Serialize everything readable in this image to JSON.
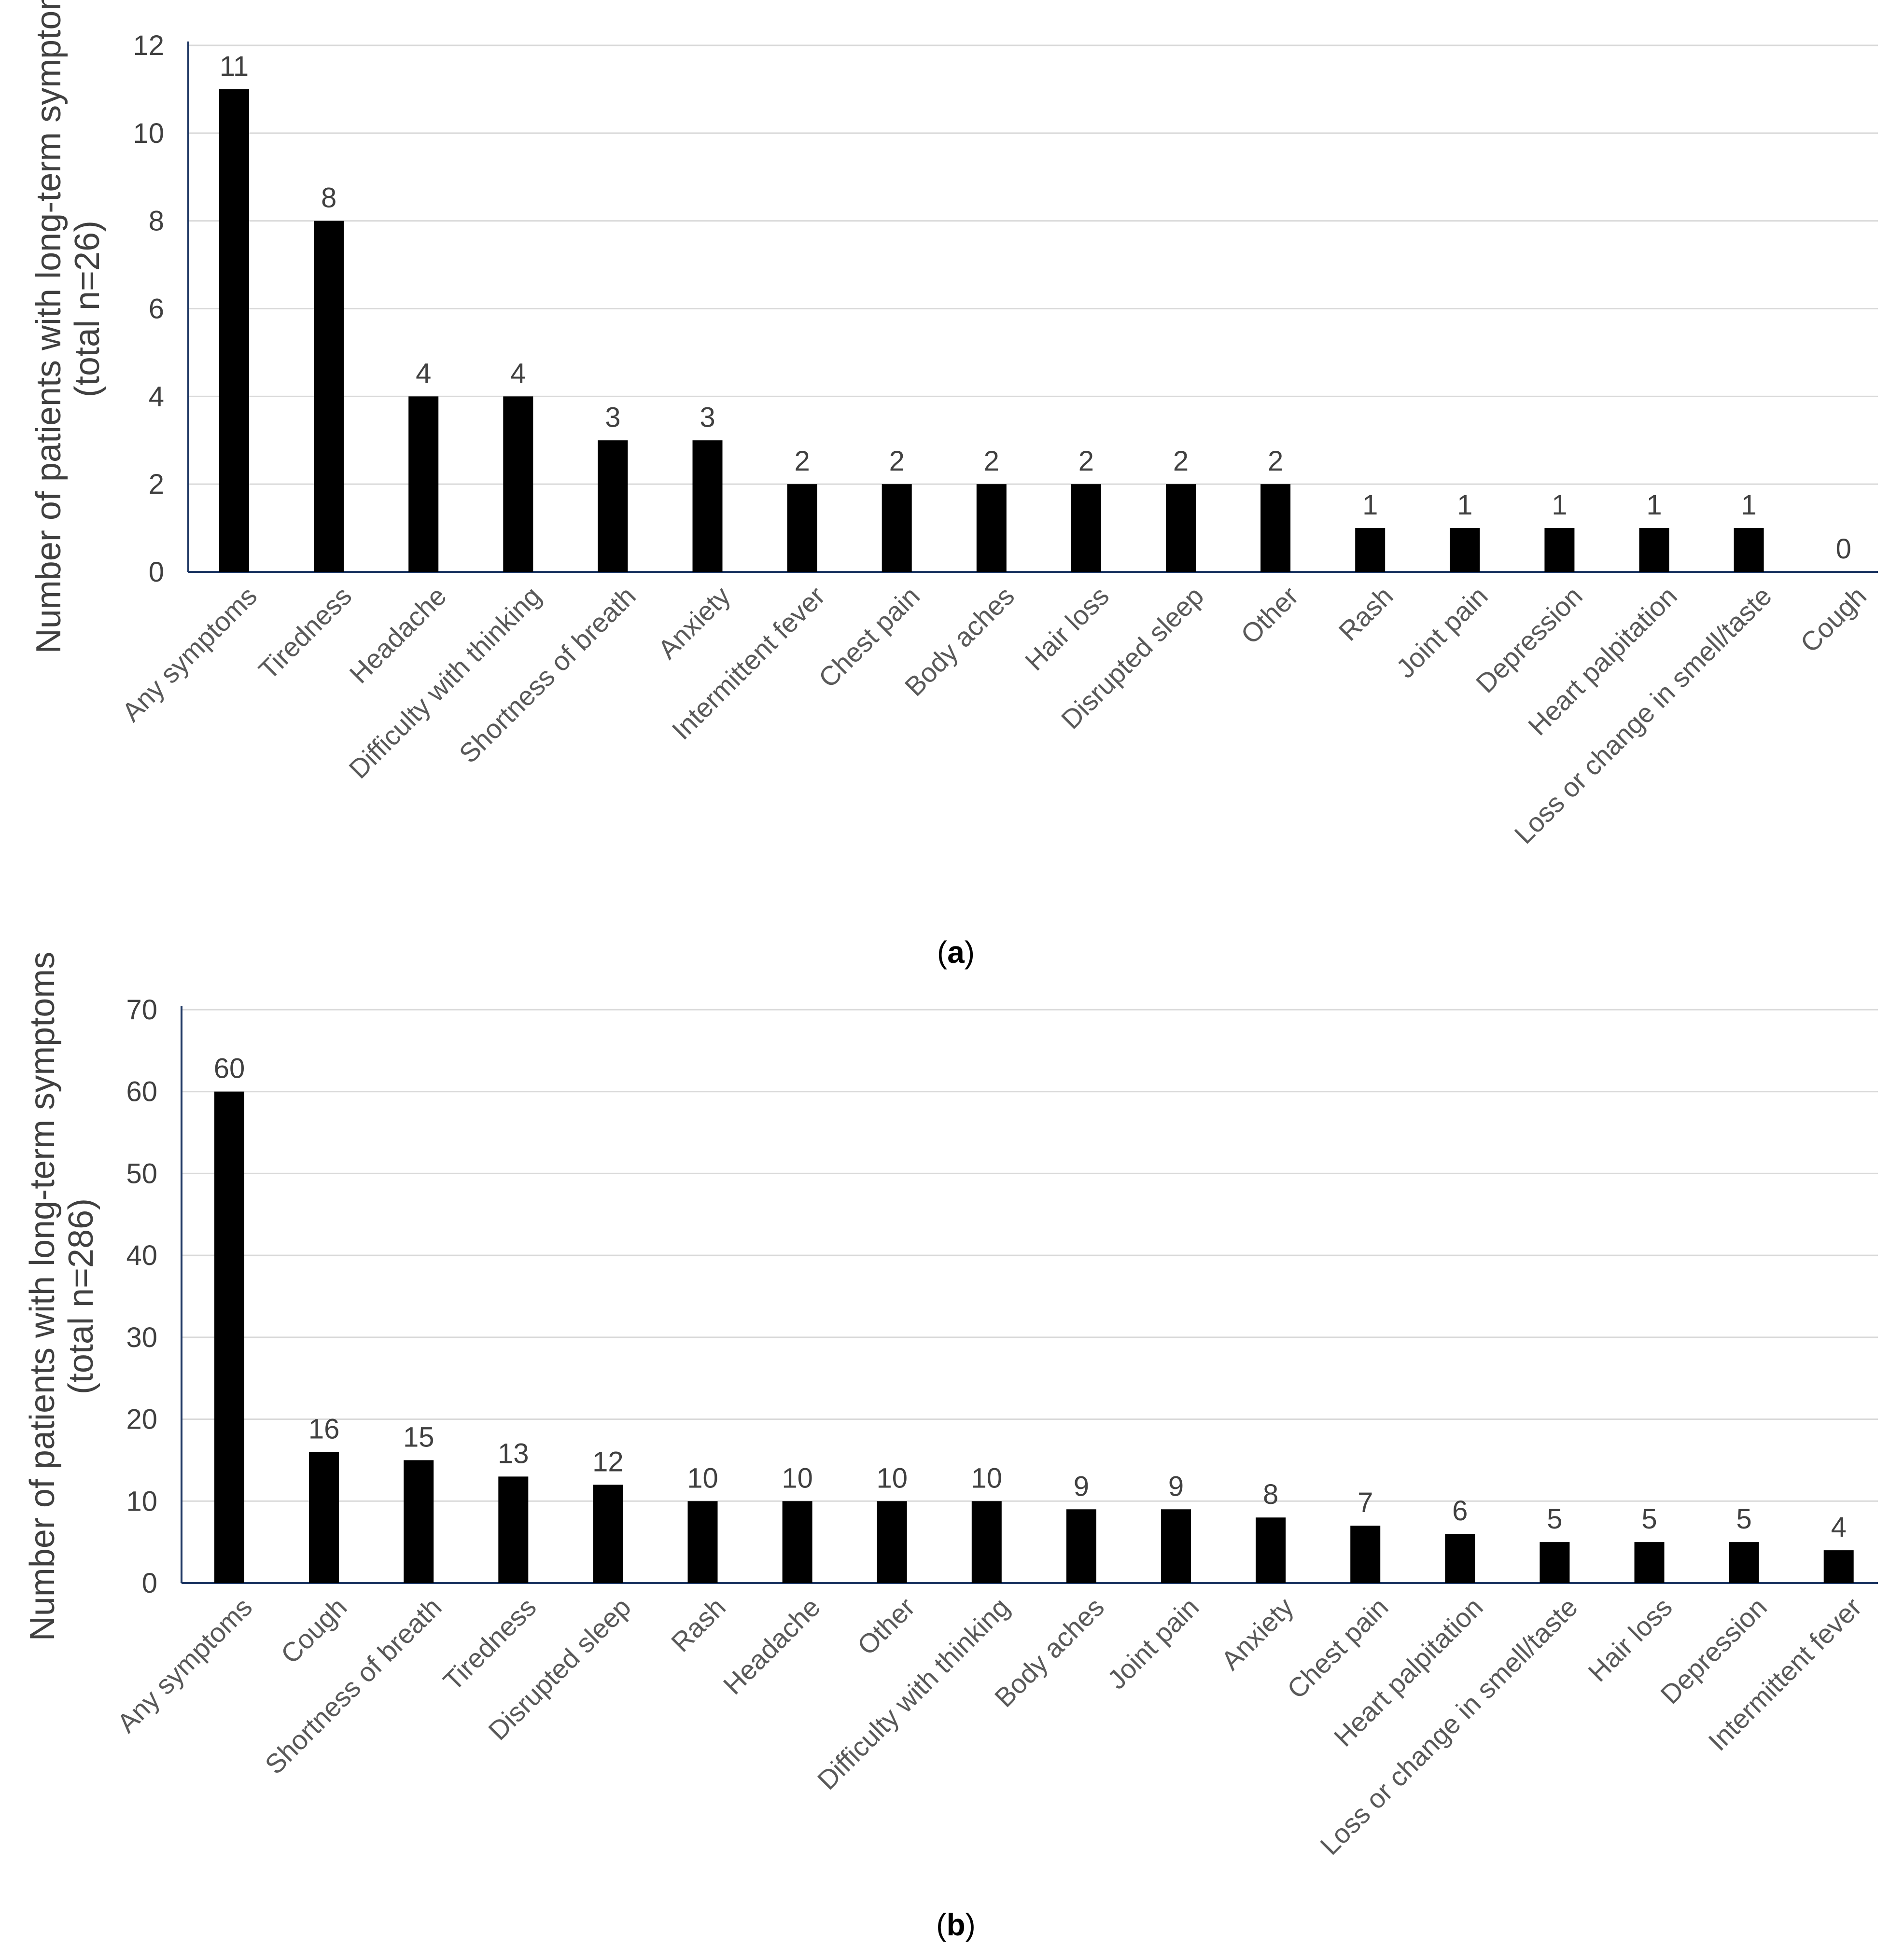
{
  "chart_data": [
    {
      "type": "bar",
      "panel_label": "a",
      "title": "",
      "xlabel": "",
      "ylabel_line1": "Number of patients with long-term symptoms",
      "ylabel_line2": "(total n=26)",
      "ylim": [
        0,
        12
      ],
      "yticks": [
        0,
        2,
        4,
        6,
        8,
        10,
        12
      ],
      "grid": true,
      "bar_color": "#000000",
      "categories": [
        "Any symptoms",
        "Tiredness",
        "Headache",
        "Difficulty with thinking",
        "Shortness of breath",
        "Anxiety",
        "Intermittent fever",
        "Chest pain",
        "Body aches",
        "Hair loss",
        "Disrupted sleep",
        "Other",
        "Rash",
        "Joint pain",
        "Depression",
        "Heart palpitation",
        "Loss or change in smell/taste",
        "Cough"
      ],
      "values": [
        11,
        8,
        4,
        4,
        3,
        3,
        2,
        2,
        2,
        2,
        2,
        2,
        1,
        1,
        1,
        1,
        1,
        0
      ]
    },
    {
      "type": "bar",
      "panel_label": "b",
      "title": "",
      "xlabel": "",
      "ylabel_line1": "Number of patients with long-term symptoms",
      "ylabel_line2": "(total n=286)",
      "ylim": [
        0,
        70
      ],
      "yticks": [
        0,
        10,
        20,
        30,
        40,
        50,
        60,
        70
      ],
      "grid": true,
      "bar_color": "#000000",
      "categories": [
        "Any symptoms",
        "Cough",
        "Shortness of breath",
        "Tiredness",
        "Disrupted sleep",
        "Rash",
        "Headache",
        "Other",
        "Difficulty with thinking",
        "Body aches",
        "Joint pain",
        "Anxiety",
        "Chest pain",
        "Heart palpitation",
        "Loss or change in smell/taste",
        "Hair loss",
        "Depression",
        "Intermittent fever"
      ],
      "values": [
        60,
        16,
        15,
        13,
        12,
        10,
        10,
        10,
        10,
        9,
        9,
        8,
        7,
        6,
        5,
        5,
        5,
        4
      ]
    }
  ]
}
